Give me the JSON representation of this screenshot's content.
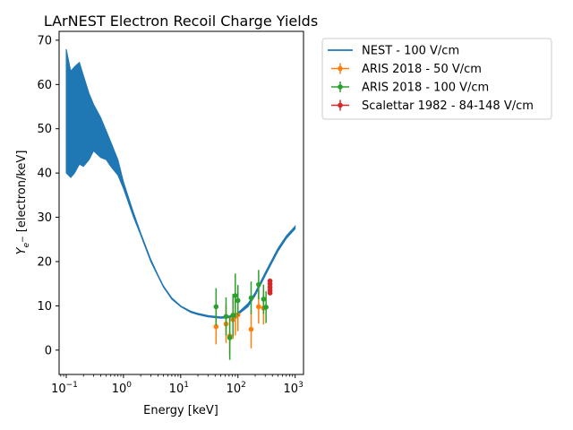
{
  "chart_data": {
    "type": "line",
    "title": "LArNEST Electron Recoil Charge Yields",
    "xlabel": "Energy [keV]",
    "ylabel": "Y_{e^-} [electron/keV]",
    "xscale": "log",
    "xlim": [
      0.075,
      1400
    ],
    "ylim": [
      -5.5,
      72
    ],
    "x_ticks": [
      {
        "value": 0.1,
        "base": "10",
        "exp": "−1"
      },
      {
        "value": 1,
        "base": "10",
        "exp": "0"
      },
      {
        "value": 10,
        "base": "10",
        "exp": "1"
      },
      {
        "value": 100,
        "base": "10",
        "exp": "2"
      },
      {
        "value": 1000,
        "base": "10",
        "exp": "3"
      }
    ],
    "y_ticks": [
      "0",
      "10",
      "20",
      "30",
      "40",
      "50",
      "60",
      "70"
    ],
    "grid": false,
    "legend_position": "outside-right",
    "series": [
      {
        "name": "NEST - 100 V/cm",
        "kind": "band",
        "color": "#1f77b4",
        "x": [
          0.1,
          0.12,
          0.14,
          0.17,
          0.2,
          0.25,
          0.3,
          0.4,
          0.5,
          0.6,
          0.8,
          1,
          1.5,
          2,
          3,
          4,
          5,
          7,
          10,
          15,
          20,
          30,
          50,
          70,
          100,
          150,
          200,
          300,
          500,
          700,
          1000
        ],
        "upper": [
          68,
          63,
          64,
          65,
          62,
          58,
          55.5,
          52.5,
          49.5,
          47,
          43,
          38,
          31,
          26.5,
          20.5,
          17,
          14.5,
          11.8,
          10,
          8.8,
          8.3,
          7.8,
          7.5,
          7.7,
          8.4,
          10.5,
          13,
          17.5,
          23,
          25.8,
          28
        ],
        "lower": [
          40,
          39,
          40,
          42,
          41.5,
          43,
          45,
          43.5,
          43,
          41.5,
          39.5,
          36.5,
          30,
          26,
          20,
          16.7,
          14.2,
          11.5,
          9.8,
          8.5,
          8.0,
          7.5,
          7.2,
          7.3,
          8.0,
          9.8,
          12.3,
          16.8,
          22.3,
          25.2,
          27.4
        ]
      },
      {
        "name": "ARIS 2018 - 50 V/cm",
        "kind": "errorbar",
        "color": "#ff7f0e",
        "points": [
          {
            "x": 41.5,
            "y": 5.3,
            "yerr": 4.0
          },
          {
            "x": 62,
            "y": 5.9,
            "yerr": 4.3
          },
          {
            "x": 72,
            "y": 3.2,
            "yerr": 4.3
          },
          {
            "x": 82,
            "y": 6.9,
            "yerr": 4.4
          },
          {
            "x": 90,
            "y": 7.6,
            "yerr": 4.3
          },
          {
            "x": 100,
            "y": 8.0,
            "yerr": 3.7
          },
          {
            "x": 170,
            "y": 4.7,
            "yerr": 4.3
          },
          {
            "x": 230,
            "y": 9.8,
            "yerr": 3.8
          },
          {
            "x": 280,
            "y": 9.5,
            "yerr": 3.7
          }
        ]
      },
      {
        "name": "ARIS 2018 - 100 V/cm",
        "kind": "errorbar",
        "color": "#2ca02c",
        "points": [
          {
            "x": 41.5,
            "y": 9.8,
            "yerr": 4.2
          },
          {
            "x": 62,
            "y": 7.6,
            "yerr": 4.3
          },
          {
            "x": 72,
            "y": 2.8,
            "yerr": 5.0
          },
          {
            "x": 82,
            "y": 7.9,
            "yerr": 4.8
          },
          {
            "x": 90,
            "y": 12.3,
            "yerr": 5.0
          },
          {
            "x": 100,
            "y": 11.2,
            "yerr": 3.5
          },
          {
            "x": 170,
            "y": 11.8,
            "yerr": 3.7
          },
          {
            "x": 230,
            "y": 14.8,
            "yerr": 3.3
          },
          {
            "x": 280,
            "y": 11.5,
            "yerr": 3.3
          },
          {
            "x": 310,
            "y": 9.7,
            "yerr": 3.6
          }
        ]
      },
      {
        "name": "Scalettar 1982 - 84-148 V/cm",
        "kind": "errorbar",
        "color": "#d62728",
        "points": [
          {
            "x": 364,
            "y": 15.6,
            "yerr": 0.3
          },
          {
            "x": 364,
            "y": 14.9,
            "yerr": 0.3
          },
          {
            "x": 364,
            "y": 14.2,
            "yerr": 0.3
          },
          {
            "x": 364,
            "y": 13.5,
            "yerr": 0.3
          },
          {
            "x": 364,
            "y": 12.9,
            "yerr": 0.3
          }
        ]
      }
    ]
  }
}
